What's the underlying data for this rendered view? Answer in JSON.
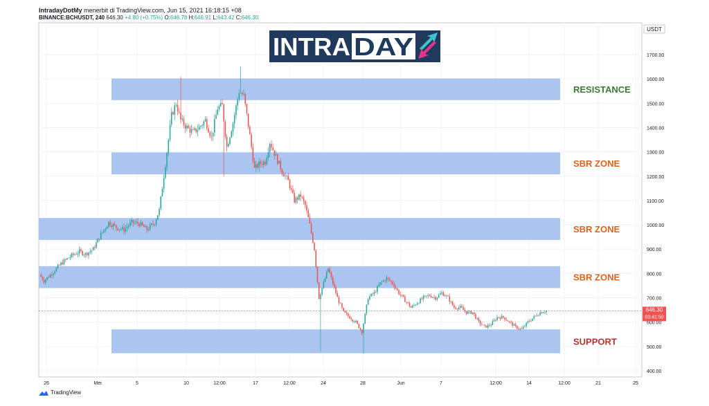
{
  "header": {
    "author": "IntradayDotMy",
    "published": "menerbit di TradingView.com, Jun 15, 2021 16:18:15 +08",
    "symbol": "BINANCE:BCHUSDT, 240",
    "last": "646.30",
    "change": "+4.80 (+0.75%)",
    "o_label": "O:",
    "o": "646.78",
    "h_label": "H:",
    "h": "646.91",
    "l_label": "L:",
    "l": "643.42",
    "c_label": "C:",
    "c": "646.30"
  },
  "logo": {
    "text_a": "INTRA",
    "text_b": "DAY"
  },
  "footer": {
    "brand": "TradingView"
  },
  "colors": {
    "zone": "#a4c2ef",
    "up": "#26a69a",
    "down": "#ef5350",
    "resistance": "#3c7a35",
    "sbr": "#d9641e",
    "support": "#b2362c",
    "logo_bg": "#1f3a5c"
  },
  "chart_data": {
    "type": "candlestick",
    "currency": "USDT",
    "ylim": [
      380,
      1770
    ],
    "y_ticks": [
      "1700.00",
      "1600.00",
      "1500.00",
      "1400.00",
      "1300.00",
      "1200.00",
      "1100.00",
      "1000.00",
      "900.00",
      "800.00",
      "700.00",
      "600.00",
      "500.00",
      "400.00"
    ],
    "x_ticks": [
      "26",
      "Mei",
      "5",
      "10",
      "12:00",
      "17",
      "12:00",
      "24",
      "28",
      "Jun",
      "7",
      "12:00",
      "14",
      "12:00",
      "21",
      "25"
    ],
    "price_label": "646.30",
    "countdown": "03:41:50",
    "zones": [
      {
        "label": "RESISTANCE",
        "low": 1513,
        "high": 1602,
        "role": "resistance"
      },
      {
        "label": "SBR ZONE",
        "low": 1208,
        "high": 1298,
        "role": "sbr"
      },
      {
        "label": "SBR ZONE",
        "low": 938,
        "high": 1028,
        "role": "sbr"
      },
      {
        "label": "SBR ZONE",
        "low": 740,
        "high": 830,
        "role": "sbr"
      },
      {
        "label": "SUPPORT",
        "low": 472,
        "high": 570,
        "role": "support"
      }
    ],
    "price_path": [
      [
        0,
        795
      ],
      [
        3,
        770
      ],
      [
        8,
        800
      ],
      [
        14,
        840
      ],
      [
        20,
        870
      ],
      [
        26,
        890
      ],
      [
        30,
        880
      ],
      [
        35,
        900
      ],
      [
        40,
        960
      ],
      [
        45,
        1010
      ],
      [
        50,
        990
      ],
      [
        55,
        980
      ],
      [
        60,
        1010
      ],
      [
        65,
        1005
      ],
      [
        70,
        980
      ],
      [
        75,
        1010
      ],
      [
        78,
        1060
      ],
      [
        82,
        1250
      ],
      [
        86,
        1450
      ],
      [
        89,
        1500
      ],
      [
        92,
        1430
      ],
      [
        96,
        1400
      ],
      [
        100,
        1380
      ],
      [
        104,
        1400
      ],
      [
        108,
        1430
      ],
      [
        112,
        1360
      ],
      [
        116,
        1480
      ],
      [
        119,
        1490
      ],
      [
        122,
        1320
      ],
      [
        126,
        1420
      ],
      [
        130,
        1550
      ],
      [
        133,
        1530
      ],
      [
        136,
        1410
      ],
      [
        140,
        1230
      ],
      [
        143,
        1250
      ],
      [
        147,
        1260
      ],
      [
        150,
        1340
      ],
      [
        154,
        1280
      ],
      [
        158,
        1220
      ],
      [
        162,
        1180
      ],
      [
        166,
        1100
      ],
      [
        170,
        1120
      ],
      [
        173,
        1080
      ],
      [
        176,
        1000
      ],
      [
        179,
        900
      ],
      [
        182,
        700
      ],
      [
        185,
        760
      ],
      [
        188,
        820
      ],
      [
        191,
        760
      ],
      [
        194,
        700
      ],
      [
        198,
        640
      ],
      [
        202,
        620
      ],
      [
        206,
        600
      ],
      [
        210,
        560
      ],
      [
        214,
        700
      ],
      [
        218,
        720
      ],
      [
        222,
        760
      ],
      [
        226,
        780
      ],
      [
        230,
        760
      ],
      [
        234,
        720
      ],
      [
        238,
        690
      ],
      [
        242,
        660
      ],
      [
        246,
        680
      ],
      [
        250,
        700
      ],
      [
        254,
        710
      ],
      [
        258,
        700
      ],
      [
        262,
        720
      ],
      [
        266,
        700
      ],
      [
        270,
        660
      ],
      [
        274,
        660
      ],
      [
        278,
        640
      ],
      [
        282,
        640
      ],
      [
        286,
        600
      ],
      [
        290,
        580
      ],
      [
        294,
        590
      ],
      [
        298,
        620
      ],
      [
        302,
        620
      ],
      [
        306,
        600
      ],
      [
        310,
        580
      ],
      [
        314,
        570
      ],
      [
        318,
        600
      ],
      [
        322,
        620
      ],
      [
        326,
        640
      ],
      [
        330,
        646
      ]
    ]
  }
}
